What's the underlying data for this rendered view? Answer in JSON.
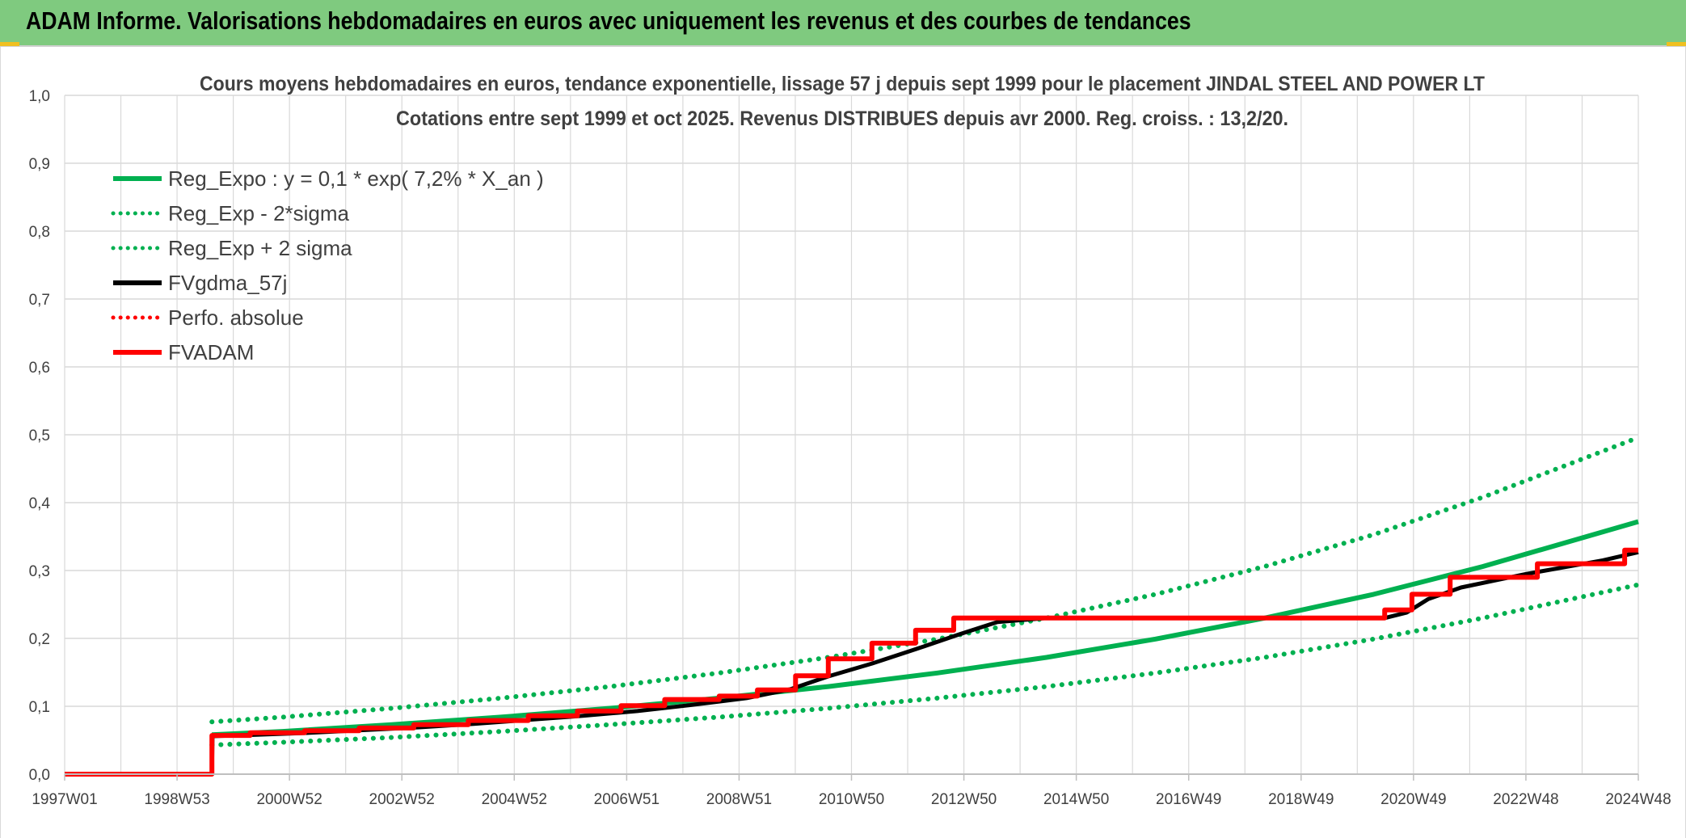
{
  "header": {
    "title": "ADAM Informe. Valorisations hebdomadaires en euros avec uniquement les revenus et des courbes de tendances"
  },
  "colors": {
    "header_bg": "#7fca7f",
    "regression": "#00b050",
    "fv_gdma": "#000000",
    "fvadam": "#ff0000",
    "grid": "#d9d9d9"
  },
  "chart_data": {
    "type": "line",
    "title": "Cours moyens hebdomadaires en euros, tendance exponentielle, lissage 57 j depuis sept 1999 pour le placement JINDAL STEEL AND POWER LT",
    "subtitle": "Cotations entre sept 1999 et oct 2025. Revenus DISTRIBUES depuis avr 2000. Reg. croiss. : 13,2/20.",
    "x_ticks": [
      "1997W01",
      "1998W53",
      "2000W52",
      "2002W52",
      "2004W52",
      "2006W51",
      "2008W51",
      "2010W50",
      "2012W50",
      "2014W50",
      "2016W49",
      "2018W49",
      "2020W49",
      "2022W48",
      "2024W48"
    ],
    "y_ticks": [
      "0,0",
      "0,1",
      "0,2",
      "0,3",
      "0,4",
      "0,5",
      "0,6",
      "0,7",
      "0,8",
      "0,9",
      "1,0"
    ],
    "xlim": [
      1997.0,
      2025.85
    ],
    "ylim": [
      0,
      1.0
    ],
    "grid": true,
    "legend_position": "top-left",
    "legend": [
      {
        "label": "Reg_Expo : y = 0,1 * exp( 7,2% *  X_an )",
        "color": "#00b050",
        "style": "solid"
      },
      {
        "label": "Reg_Exp - 2*sigma",
        "color": "#00b050",
        "style": "dotted"
      },
      {
        "label": "Reg_Exp + 2 sigma",
        "color": "#00b050",
        "style": "dotted"
      },
      {
        "label": "FVgdma_57j",
        "color": "#000000",
        "style": "solid"
      },
      {
        "label": "Perfo. absolue",
        "color": "#ff0000",
        "style": "dotted"
      },
      {
        "label": "FVADAM",
        "color": "#ff0000",
        "style": "solid"
      }
    ],
    "series": [
      {
        "name": "Reg_Expo : y = 0,1 * exp( 7,2% *  X_an )",
        "x": [
          1999.7,
          2001,
          2003,
          2005,
          2007,
          2009,
          2011,
          2013,
          2015,
          2017,
          2019,
          2021,
          2023,
          2025.85
        ],
        "values": [
          0.058,
          0.063,
          0.073,
          0.084,
          0.097,
          0.112,
          0.129,
          0.149,
          0.172,
          0.199,
          0.23,
          0.265,
          0.306,
          0.372
        ]
      },
      {
        "name": "Reg_Exp - 2*sigma",
        "x": [
          1999.7,
          2001,
          2003,
          2005,
          2007,
          2009,
          2011,
          2013,
          2015,
          2017,
          2019,
          2021,
          2023,
          2025.85
        ],
        "values": [
          0.043,
          0.047,
          0.054,
          0.063,
          0.073,
          0.084,
          0.097,
          0.112,
          0.129,
          0.149,
          0.172,
          0.199,
          0.23,
          0.279
        ]
      },
      {
        "name": "Reg_Exp + 2 sigma",
        "x": [
          1999.7,
          2001,
          2003,
          2005,
          2007,
          2009,
          2011,
          2013,
          2015,
          2017,
          2019,
          2021,
          2023,
          2025.85
        ],
        "values": [
          0.077,
          0.084,
          0.097,
          0.112,
          0.129,
          0.149,
          0.172,
          0.199,
          0.23,
          0.265,
          0.306,
          0.353,
          0.408,
          0.496
        ]
      },
      {
        "name": "FVgdma_57j",
        "x": [
          1997.0,
          1999.7,
          1999.71,
          2000.5,
          2001.5,
          2002.5,
          2003.5,
          2004.5,
          2005.5,
          2006.5,
          2007.5,
          2008.5,
          2009.5,
          2010.3,
          2011.0,
          2011.8,
          2012.6,
          2013.4,
          2014.1,
          2015.0,
          2017.0,
          2019.0,
          2021.2,
          2021.6,
          2022.0,
          2022.6,
          2023.2,
          2023.8,
          2024.5,
          2025.2,
          2025.85
        ],
        "values": [
          0.0,
          0.0,
          0.056,
          0.058,
          0.061,
          0.065,
          0.069,
          0.074,
          0.08,
          0.086,
          0.093,
          0.102,
          0.112,
          0.125,
          0.144,
          0.163,
          0.184,
          0.206,
          0.224,
          0.23,
          0.23,
          0.23,
          0.23,
          0.238,
          0.258,
          0.275,
          0.285,
          0.295,
          0.305,
          0.315,
          0.327
        ]
      },
      {
        "name": "FVADAM",
        "x": [
          1997.0,
          1999.7,
          1999.7,
          2000.4,
          2000.4,
          2001.4,
          2001.4,
          2002.4,
          2002.4,
          2003.4,
          2003.4,
          2004.4,
          2004.4,
          2005.5,
          2005.5,
          2006.4,
          2006.4,
          2007.2,
          2007.2,
          2008.0,
          2008.0,
          2009.0,
          2009.0,
          2009.7,
          2009.7,
          2010.4,
          2010.4,
          2011.0,
          2011.0,
          2011.8,
          2011.8,
          2012.6,
          2012.6,
          2013.3,
          2013.3,
          2014.0,
          2014.0,
          2021.2,
          2021.2,
          2021.7,
          2021.7,
          2022.4,
          2022.4,
          2023.0,
          2023.0,
          2024.0,
          2024.0,
          2024.7,
          2024.7,
          2025.6,
          2025.6,
          2025.85
        ],
        "values": [
          0.0,
          0.0,
          0.057,
          0.057,
          0.061,
          0.061,
          0.064,
          0.064,
          0.068,
          0.068,
          0.073,
          0.073,
          0.079,
          0.079,
          0.086,
          0.086,
          0.093,
          0.093,
          0.101,
          0.101,
          0.11,
          0.11,
          0.115,
          0.115,
          0.124,
          0.124,
          0.145,
          0.145,
          0.17,
          0.17,
          0.193,
          0.193,
          0.212,
          0.212,
          0.23,
          0.23,
          0.23,
          0.23,
          0.242,
          0.242,
          0.265,
          0.265,
          0.29,
          0.29,
          0.29,
          0.29,
          0.31,
          0.31,
          0.31,
          0.31,
          0.33,
          0.33
        ]
      },
      {
        "name": "Perfo. absolue",
        "x": [],
        "values": []
      }
    ]
  }
}
